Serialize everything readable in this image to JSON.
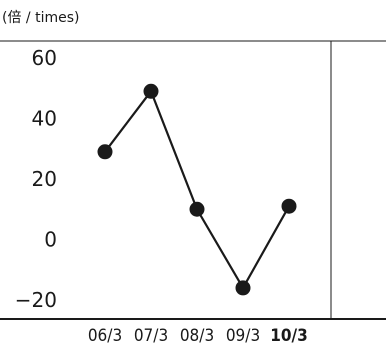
{
  "chart_data": {
    "type": "line",
    "unit_label": "(倍 / times)",
    "categories": [
      "06/3",
      "07/3",
      "08/3",
      "09/3",
      "10/3"
    ],
    "highlight_category": "10/3",
    "highlight_color": "#1a9fd9",
    "values": [
      29,
      49,
      10,
      -16,
      11
    ],
    "yticks": [
      60,
      40,
      20,
      0,
      -20
    ],
    "ytick_labels": [
      "60",
      "40",
      "20",
      "0",
      "−20"
    ],
    "ylim": [
      -20,
      60
    ],
    "line_color": "#1a1a1a",
    "marker_color": "#1a1a1a",
    "grid": false
  }
}
